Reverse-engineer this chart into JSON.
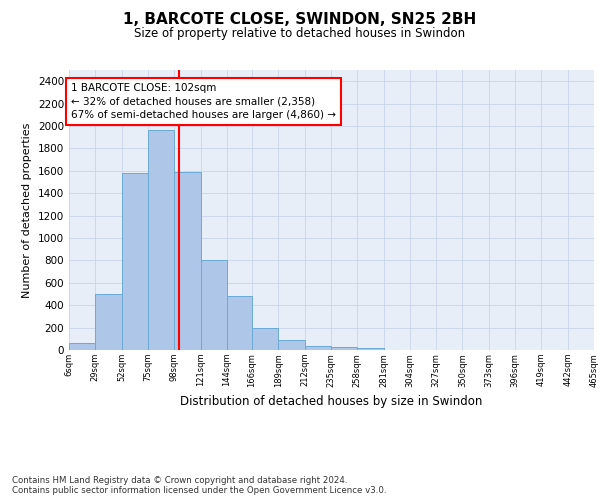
{
  "title": "1, BARCOTE CLOSE, SWINDON, SN25 2BH",
  "subtitle": "Size of property relative to detached houses in Swindon",
  "xlabel": "Distribution of detached houses by size in Swindon",
  "ylabel": "Number of detached properties",
  "bar_values": [
    60,
    500,
    1580,
    1960,
    1590,
    800,
    480,
    200,
    90,
    35,
    25,
    20
  ],
  "xtick_labels": [
    "6sqm",
    "29sqm",
    "52sqm",
    "75sqm",
    "98sqm",
    "121sqm",
    "144sqm",
    "166sqm",
    "189sqm",
    "212sqm",
    "235sqm",
    "258sqm",
    "281sqm",
    "304sqm",
    "327sqm",
    "350sqm",
    "373sqm",
    "396sqm",
    "419sqm",
    "442sqm",
    "465sqm"
  ],
  "bar_color": "#aec6e8",
  "bar_edge_color": "#6aaad4",
  "grid_color": "#c8d4e8",
  "background_color": "#e8eef8",
  "vline_x_bin": 4,
  "vline_color": "red",
  "annotation_text": "1 BARCOTE CLOSE: 102sqm\n← 32% of detached houses are smaller (2,358)\n67% of semi-detached houses are larger (4,860) →",
  "ylim": [
    0,
    2500
  ],
  "yticks": [
    0,
    200,
    400,
    600,
    800,
    1000,
    1200,
    1400,
    1600,
    1800,
    2000,
    2200,
    2400
  ],
  "footer_text": "Contains HM Land Registry data © Crown copyright and database right 2024.\nContains public sector information licensed under the Open Government Licence v3.0.",
  "bin_edges": [
    6,
    29,
    52,
    75,
    98,
    121,
    144,
    166,
    189,
    212,
    235,
    258,
    281,
    304,
    327,
    350,
    373,
    396,
    419,
    442,
    465
  ]
}
